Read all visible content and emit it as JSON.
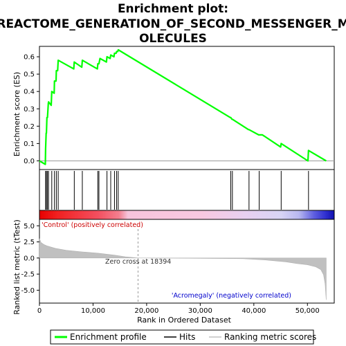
{
  "title_lines": [
    "Enrichment plot:",
    "REACTOME_GENERATION_OF_SECOND_MESSENGER_M",
    "OLECULES"
  ],
  "colors": {
    "es_line": "#00ff00",
    "hits": "#000000",
    "metric_fill": "#c0c0c0",
    "positive_label": "#cc0000",
    "negative_label": "#0000cc",
    "zero_line": "#999999",
    "frame": "#000000"
  },
  "chart_data": [
    {
      "panel": "enrichment-score",
      "type": "line",
      "ylabel": "Enrichment score (ES)",
      "xlim": [
        0,
        55000
      ],
      "ylim": [
        -0.05,
        0.66
      ],
      "y_ticks": [
        "0.0",
        "0.1",
        "0.2",
        "0.3",
        "0.4",
        "0.5",
        "0.6"
      ],
      "y_tick_values": [
        0.0,
        0.1,
        0.2,
        0.3,
        0.4,
        0.5,
        0.6
      ],
      "series": [
        {
          "x": [
            0,
            1100,
            1150,
            1250,
            1300,
            1400,
            1500,
            1650,
            1700,
            2200,
            2300,
            2750,
            2800,
            3100,
            3150,
            3400,
            3500,
            6400,
            6500,
            7900,
            8000,
            10800,
            10900,
            11100,
            11300,
            12500,
            12600,
            13200,
            13300,
            13900,
            14000,
            14300,
            14400,
            14600,
            14700,
            35600,
            35700,
            35900,
            36000,
            39000,
            39100,
            40900,
            41000,
            41600,
            45000,
            45100,
            50100,
            50200,
            53500
          ],
          "y": [
            0.0,
            -0.02,
            0.07,
            0.16,
            0.16,
            0.25,
            0.25,
            0.33,
            0.34,
            0.32,
            0.4,
            0.39,
            0.46,
            0.46,
            0.52,
            0.52,
            0.58,
            0.53,
            0.57,
            0.54,
            0.58,
            0.53,
            0.56,
            0.56,
            0.59,
            0.57,
            0.6,
            0.59,
            0.61,
            0.6,
            0.62,
            0.62,
            0.63,
            0.63,
            0.64,
            0.25,
            0.25,
            0.24,
            0.24,
            0.18,
            0.18,
            0.15,
            0.15,
            0.15,
            0.08,
            0.1,
            0.0,
            0.06,
            0.0
          ]
        }
      ]
    },
    {
      "panel": "hits",
      "type": "scatter",
      "xlim": [
        0,
        55000
      ],
      "hit_positions": [
        1150,
        1300,
        1500,
        1700,
        2300,
        2800,
        3150,
        3500,
        6500,
        8000,
        10900,
        11100,
        12600,
        13300,
        14000,
        14400,
        14700,
        35700,
        36000,
        39100,
        41000,
        45100,
        50200
      ]
    },
    {
      "panel": "ranking-metric",
      "type": "area",
      "ylabel": "Ranked list metric (tTest)",
      "xlabel": "Rank in Ordered Dataset",
      "xlim": [
        0,
        55000
      ],
      "ylim": [
        -7,
        6
      ],
      "x_ticks": [
        "0",
        "10,000",
        "20,000",
        "30,000",
        "40,000",
        "50,000"
      ],
      "x_tick_values": [
        0,
        10000,
        20000,
        30000,
        40000,
        50000
      ],
      "y_ticks": [
        "5.0",
        "2.5",
        "0.0",
        "-2.5",
        "-5.0"
      ],
      "y_tick_values": [
        5.0,
        2.5,
        0.0,
        -2.5,
        -5.0
      ],
      "x": [
        0,
        300,
        800,
        1500,
        3000,
        5000,
        8000,
        11000,
        14000,
        16000,
        18394,
        22000,
        30000,
        38000,
        42000,
        46000,
        48000,
        50000,
        51500,
        52500,
        53000,
        53300,
        53500
      ],
      "values": [
        3.0,
        2.4,
        2.1,
        1.85,
        1.5,
        1.2,
        0.95,
        0.75,
        0.45,
        0.2,
        0.0,
        -0.02,
        -0.05,
        -0.1,
        -0.3,
        -0.6,
        -0.85,
        -1.05,
        -1.35,
        -1.8,
        -2.6,
        -4.0,
        -6.5
      ],
      "zero_cross": 18394,
      "annotations": {
        "positive": "'Control' (positively correlated)",
        "negative": "'Acromegaly' (negatively correlated)",
        "zero_cross": "Zero cross at 18394"
      }
    }
  ],
  "legend": {
    "items": [
      "Enrichment profile",
      "Hits",
      "Ranking metric scores"
    ]
  }
}
